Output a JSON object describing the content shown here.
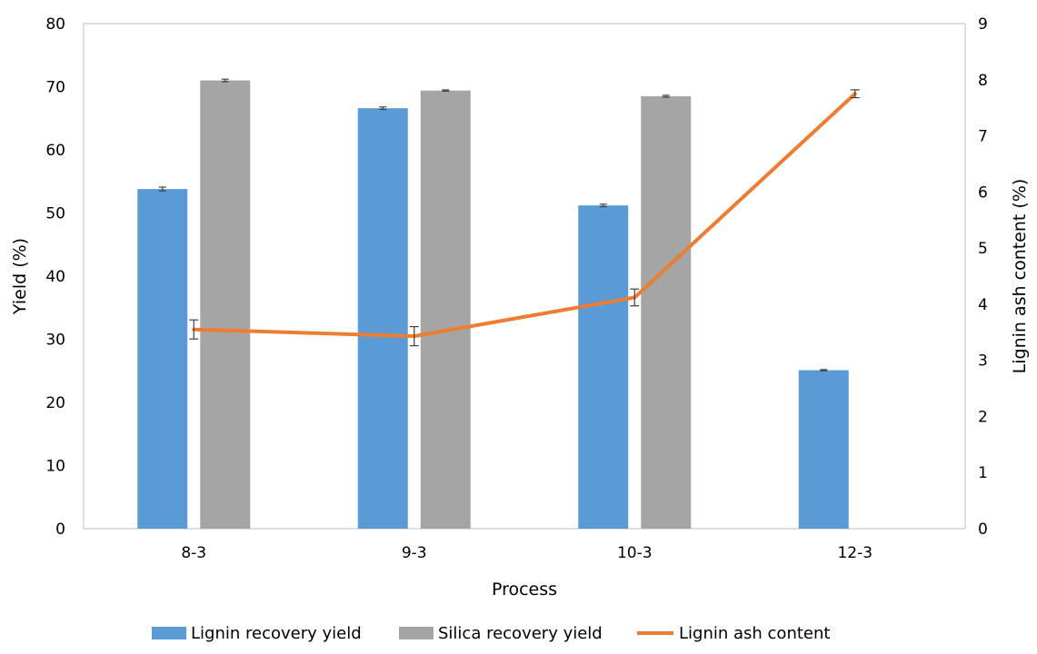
{
  "chart_data": {
    "type": "bar",
    "categories": [
      "8-3",
      "9-3",
      "10-3",
      "12-3"
    ],
    "xlabel": "Process",
    "ylabel": "Yield (%)",
    "y2label": "Lignin ash content (%)",
    "ylim": [
      0,
      80
    ],
    "y2lim": [
      0,
      9
    ],
    "yticks": [
      "0",
      "10",
      "20",
      "30",
      "40",
      "50",
      "60",
      "70",
      "80"
    ],
    "y2ticks": [
      "0",
      "1",
      "2",
      "3",
      "4",
      "5",
      "6",
      "7",
      "8",
      "9"
    ],
    "grid": false,
    "legend_position": "bottom",
    "series": [
      {
        "name": "Lignin recovery yield",
        "kind": "bar",
        "axis": "left",
        "color": "#5b9bd5",
        "values": [
          53.8,
          66.6,
          51.2,
          25.1
        ],
        "errors": [
          0.3,
          0.2,
          0.2,
          0.1
        ]
      },
      {
        "name": "Silica recovery yield",
        "kind": "bar",
        "axis": "left",
        "color": "#a5a5a5",
        "values": [
          71.0,
          69.4,
          68.5,
          null
        ],
        "errors": [
          0.2,
          0.1,
          0.15,
          null
        ]
      },
      {
        "name": "Lignin ash content",
        "kind": "line",
        "axis": "right",
        "color": "#ed7d31",
        "values": [
          3.55,
          3.43,
          4.12,
          7.75
        ],
        "errors": [
          0.17,
          0.17,
          0.15,
          0.07
        ]
      }
    ]
  }
}
